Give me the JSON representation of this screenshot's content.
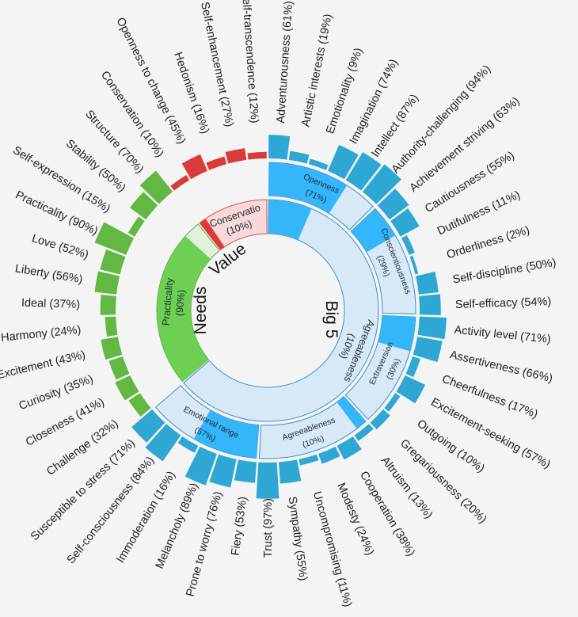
{
  "chart_data": {
    "type": "sunburst",
    "title": "",
    "colors": {
      "blue_bar": "#2ea7d5",
      "blue_dark": "#33b6fb",
      "blue_light": "#d7e9f7",
      "blue_stroke": "#3a8fcf",
      "green_bar": "#62b843",
      "green_dark": "#6dd052",
      "green_light": "#e4f0dc",
      "green_stroke": "#5aaa3c",
      "red_bar": "#d93a3a",
      "red_dark": "#d93a3a",
      "red_light": "#f8d8d8",
      "red_stroke": "#e05050"
    },
    "groups": [
      {
        "label": "Big 5",
        "color": "blue",
        "inner_name": "Agreeableness",
        "inner_pct": "(10%)",
        "value": 0.1,
        "children": [
          {
            "name": "Openness",
            "pct": "(71%)",
            "value": 0.71,
            "facets": [
              {
                "label": "Adventurousness (61%)",
                "value": 0.61
              },
              {
                "label": "Artistic interests (19%)",
                "value": 0.19
              },
              {
                "label": "Emotionality (9%)",
                "value": 0.09
              },
              {
                "label": "Imagination (74%)",
                "value": 0.74
              },
              {
                "label": "Intellect (87%)",
                "value": 0.87
              },
              {
                "label": "Authority-challenging (94%)",
                "value": 0.94
              }
            ]
          },
          {
            "name": "Conscientiousness",
            "pct": "(29%)",
            "value": 0.29,
            "facets": [
              {
                "label": "Achievement striving (63%)",
                "value": 0.63
              },
              {
                "label": "Cautiousness (55%)",
                "value": 0.55
              },
              {
                "label": "Dutifulness (11%)",
                "value": 0.11
              },
              {
                "label": "Orderliness (2%)",
                "value": 0.02
              },
              {
                "label": "Self-discipline (50%)",
                "value": 0.5
              },
              {
                "label": "Self-efficacy (54%)",
                "value": 0.54
              }
            ]
          },
          {
            "name": "Extraversion",
            "pct": "(30%)",
            "value": 0.3,
            "facets": [
              {
                "label": "Activity level (71%)",
                "value": 0.71
              },
              {
                "label": "Assertiveness (66%)",
                "value": 0.66
              },
              {
                "label": "Cheerfulness (17%)",
                "value": 0.17
              },
              {
                "label": "Excitement-seeking (57%)",
                "value": 0.57
              },
              {
                "label": "Outgoing (10%)",
                "value": 0.1
              },
              {
                "label": "Gregariousness (20%)",
                "value": 0.2
              }
            ]
          },
          {
            "name": "Agreeableness",
            "pct": "(10%)",
            "value": 0.1,
            "facets": [
              {
                "label": "Altruism (13%)",
                "value": 0.13
              },
              {
                "label": "Cooperation (38%)",
                "value": 0.38
              },
              {
                "label": "Modesty (24%)",
                "value": 0.24
              },
              {
                "label": "Uncompromising (11%)",
                "value": 0.11
              },
              {
                "label": "Sympathy (55%)",
                "value": 0.55
              },
              {
                "label": "Trust (97%)",
                "value": 0.97
              }
            ]
          },
          {
            "name": "Emotional range",
            "pct": "(57%)",
            "value": 0.57,
            "facets": [
              {
                "label": "Fiery (53%)",
                "value": 0.53
              },
              {
                "label": "Prone to worry (76%)",
                "value": 0.76
              },
              {
                "label": "Melancholy (89%)",
                "value": 0.89
              },
              {
                "label": "Immoderation (16%)",
                "value": 0.16
              },
              {
                "label": "Self-consciousness (84%)",
                "value": 0.84
              },
              {
                "label": "Susceptible to stress (71%)",
                "value": 0.71
              }
            ]
          }
        ]
      },
      {
        "label": "Needs",
        "color": "green",
        "inner_name": "Practicality",
        "inner_pct": "(90%)",
        "value": 0.9,
        "facets": [
          {
            "label": "Challenge (32%)",
            "value": 0.32
          },
          {
            "label": "Closeness (41%)",
            "value": 0.41
          },
          {
            "label": "Curiosity (35%)",
            "value": 0.35
          },
          {
            "label": "Excitement (43%)",
            "value": 0.43
          },
          {
            "label": "Harmony (24%)",
            "value": 0.24
          },
          {
            "label": "Ideal (37%)",
            "value": 0.37
          },
          {
            "label": "Liberty (56%)",
            "value": 0.56
          },
          {
            "label": "Love (52%)",
            "value": 0.52
          },
          {
            "label": "Practicality (90%)",
            "value": 0.9
          },
          {
            "label": "Self-expression (15%)",
            "value": 0.15
          },
          {
            "label": "Stability (50%)",
            "value": 0.5
          },
          {
            "label": "Structure (70%)",
            "value": 0.7
          }
        ]
      },
      {
        "label": "Value",
        "color": "red",
        "inner_name": "Conservatio",
        "inner_pct": "(10%)",
        "value": 0.1,
        "facets": [
          {
            "label": "Conservation (10%)",
            "value": 0.1
          },
          {
            "label": "Openness to change (45%)",
            "value": 0.45
          },
          {
            "label": "Hedonism (16%)",
            "value": 0.16
          },
          {
            "label": "Self-enhancement (27%)",
            "value": 0.27
          },
          {
            "label": "Self-transcendence (12%)",
            "value": 0.12
          }
        ]
      }
    ]
  }
}
